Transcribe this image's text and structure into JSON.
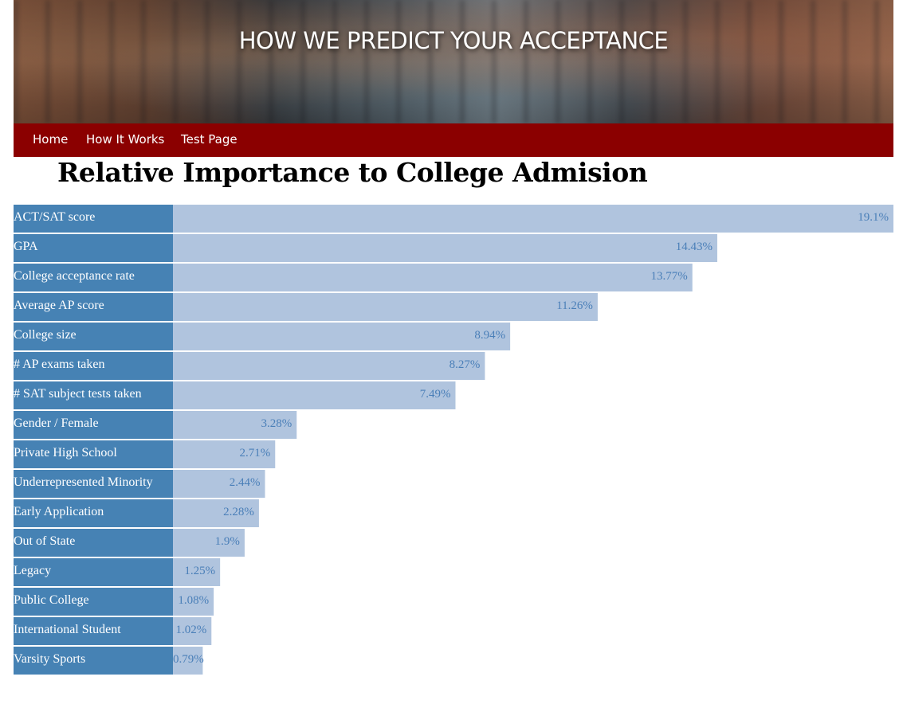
{
  "header": {
    "title": "HOW WE PREDICT YOUR ACCEPTANCE"
  },
  "nav": {
    "items": [
      {
        "label": "Home"
      },
      {
        "label": "How It Works"
      },
      {
        "label": "Test Page"
      }
    ]
  },
  "colors": {
    "nav_bg": "#8b0000",
    "label_bg": "#4682b4",
    "bar_fill": "#b0c4de",
    "value_text": "#4a7fb8"
  },
  "chart_data": {
    "type": "bar",
    "orientation": "horizontal",
    "title": "Relative Importance to College Admision",
    "categories": [
      "ACT/SAT score",
      "GPA",
      "College acceptance rate",
      "Average AP score",
      "College size",
      "# AP exams taken",
      "# SAT subject tests taken",
      "Gender / Female",
      "Private High School",
      "Underrepresented Minority",
      "Early Application",
      "Out of State",
      "Legacy",
      "Public College",
      "International Student",
      "Varsity Sports"
    ],
    "values": [
      19.1,
      14.43,
      13.77,
      11.26,
      8.94,
      8.27,
      7.49,
      3.28,
      2.71,
      2.44,
      2.28,
      1.9,
      1.25,
      1.08,
      1.02,
      0.79
    ],
    "value_labels": [
      "19.1%",
      "14.43%",
      "13.77%",
      "11.26%",
      "8.94%",
      "8.27%",
      "7.49%",
      "3.28%",
      "2.71%",
      "2.44%",
      "2.28%",
      "1.9%",
      "1.25%",
      "1.08%",
      "1.02%",
      "0.79%"
    ],
    "xlim": [
      0,
      19.1
    ]
  }
}
